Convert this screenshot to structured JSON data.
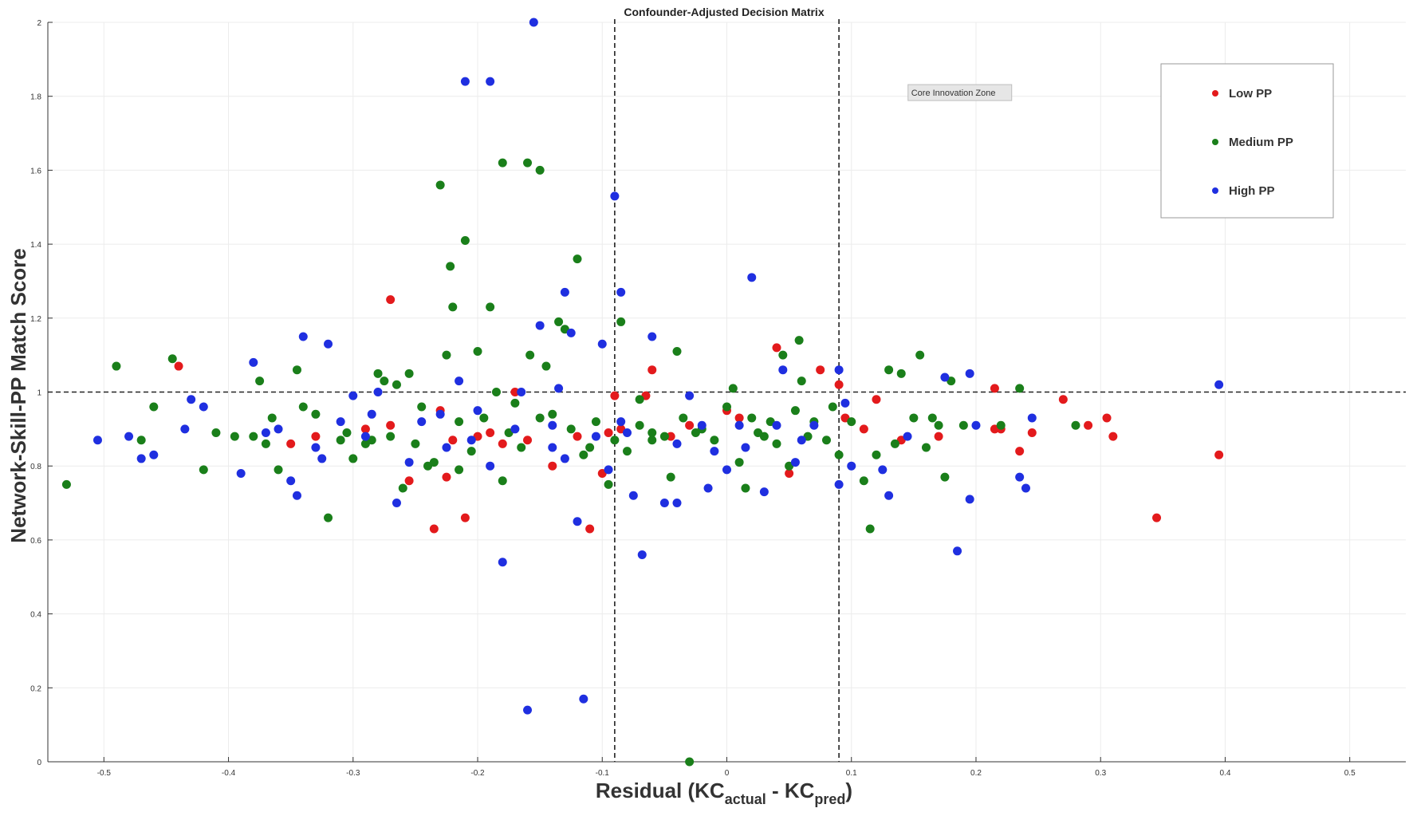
{
  "chart_data": {
    "type": "scatter",
    "title": "Confounder-Adjusted Decision Matrix",
    "xlabel": {
      "prefix": "Residual (KC",
      "sub1": "actual",
      "mid": " - KC",
      "sub2": "pred",
      "suffix": ")"
    },
    "ylabel": "Network-Skill-PP Match Score",
    "xlim": [
      -0.545,
      0.545
    ],
    "ylim": [
      0,
      2
    ],
    "xticks": [
      -0.5,
      -0.4,
      -0.3,
      -0.2,
      -0.1,
      0,
      0.1,
      0.2,
      0.3,
      0.4,
      0.5
    ],
    "xtick_labels": [
      "-0.5",
      "-0.4",
      "-0.3",
      "-0.2",
      "-0.1",
      "0",
      "0.1",
      "0.2",
      "0.3",
      "0.4",
      "0.5"
    ],
    "yticks": [
      0,
      0.2,
      0.4,
      0.6,
      0.8,
      1,
      1.2,
      1.4,
      1.6,
      1.8,
      2
    ],
    "ytick_labels": [
      "0",
      "0.2",
      "0.4",
      "0.6",
      "0.8",
      "1",
      "1.2",
      "1.4",
      "1.6",
      "1.8",
      "2"
    ],
    "grid": true,
    "legend_position": "top-right",
    "reference_lines": {
      "horizontal_y": 1,
      "vertical_x": [
        -0.09,
        0.09
      ]
    },
    "annotation": {
      "text": "Core Innovation Zone",
      "x": 0.148,
      "y": 1.81
    },
    "colors": {
      "Low PP": "#e31a1c",
      "Medium PP": "#1a7f1a",
      "High PP": "#1f2fe0"
    },
    "series": [
      {
        "name": "Low PP",
        "points": [
          [
            -0.44,
            1.07
          ],
          [
            -0.27,
            1.25
          ],
          [
            -0.235,
            0.63
          ],
          [
            -0.21,
            0.66
          ],
          [
            -0.17,
            1.0
          ],
          [
            -0.14,
            0.8
          ],
          [
            -0.11,
            0.63
          ],
          [
            -0.1,
            0.78
          ],
          [
            -0.09,
            0.99
          ],
          [
            -0.06,
            1.06
          ],
          [
            -0.35,
            0.86
          ],
          [
            -0.29,
            0.9
          ],
          [
            -0.27,
            0.91
          ],
          [
            -0.255,
            0.76
          ],
          [
            -0.225,
            0.77
          ],
          [
            -0.2,
            0.88
          ],
          [
            -0.18,
            0.86
          ],
          [
            -0.16,
            0.87
          ],
          [
            -0.12,
            0.88
          ],
          [
            -0.085,
            0.9
          ],
          [
            -0.045,
            0.88
          ],
          [
            -0.03,
            0.91
          ],
          [
            0.0,
            0.95
          ],
          [
            0.04,
            1.12
          ],
          [
            0.05,
            0.78
          ],
          [
            0.075,
            1.06
          ],
          [
            0.09,
            1.02
          ],
          [
            0.095,
            0.93
          ],
          [
            0.12,
            0.98
          ],
          [
            0.14,
            0.87
          ],
          [
            0.17,
            0.88
          ],
          [
            0.215,
            1.01
          ],
          [
            0.22,
            0.9
          ],
          [
            0.235,
            0.84
          ],
          [
            0.245,
            0.89
          ],
          [
            0.27,
            0.98
          ],
          [
            0.29,
            0.91
          ],
          [
            0.305,
            0.93
          ],
          [
            0.31,
            0.88
          ],
          [
            0.345,
            0.66
          ],
          [
            0.395,
            0.83
          ],
          [
            -0.33,
            0.88
          ],
          [
            -0.23,
            0.95
          ],
          [
            -0.19,
            0.89
          ],
          [
            0.01,
            0.93
          ],
          [
            0.11,
            0.9
          ],
          [
            0.215,
            0.9
          ],
          [
            -0.065,
            0.99
          ],
          [
            -0.095,
            0.89
          ],
          [
            -0.22,
            0.87
          ]
        ]
      },
      {
        "name": "Medium PP",
        "points": [
          [
            -0.53,
            0.75
          ],
          [
            -0.49,
            1.07
          ],
          [
            -0.47,
            0.87
          ],
          [
            -0.46,
            0.96
          ],
          [
            -0.445,
            1.09
          ],
          [
            -0.42,
            0.79
          ],
          [
            -0.41,
            0.89
          ],
          [
            -0.38,
            0.88
          ],
          [
            -0.375,
            1.03
          ],
          [
            -0.37,
            0.86
          ],
          [
            -0.365,
            0.93
          ],
          [
            -0.36,
            0.79
          ],
          [
            -0.345,
            1.06
          ],
          [
            -0.34,
            0.96
          ],
          [
            -0.32,
            0.66
          ],
          [
            -0.31,
            0.87
          ],
          [
            -0.3,
            0.82
          ],
          [
            -0.29,
            0.86
          ],
          [
            -0.28,
            1.05
          ],
          [
            -0.275,
            1.03
          ],
          [
            -0.265,
            1.02
          ],
          [
            -0.255,
            1.05
          ],
          [
            -0.25,
            0.86
          ],
          [
            -0.245,
            0.96
          ],
          [
            -0.24,
            0.8
          ],
          [
            -0.23,
            1.56
          ],
          [
            -0.225,
            1.1
          ],
          [
            -0.222,
            1.34
          ],
          [
            -0.22,
            1.23
          ],
          [
            -0.215,
            0.92
          ],
          [
            -0.21,
            1.41
          ],
          [
            -0.205,
            0.84
          ],
          [
            -0.2,
            1.11
          ],
          [
            -0.195,
            0.93
          ],
          [
            -0.19,
            1.23
          ],
          [
            -0.185,
            1.0
          ],
          [
            -0.18,
            1.62
          ],
          [
            -0.175,
            0.89
          ],
          [
            -0.165,
            0.85
          ],
          [
            -0.16,
            1.62
          ],
          [
            -0.158,
            1.1
          ],
          [
            -0.15,
            1.6
          ],
          [
            -0.145,
            1.07
          ],
          [
            -0.14,
            0.94
          ],
          [
            -0.135,
            1.19
          ],
          [
            -0.13,
            1.17
          ],
          [
            -0.12,
            1.36
          ],
          [
            -0.11,
            0.85
          ],
          [
            -0.105,
            0.92
          ],
          [
            -0.095,
            0.75
          ],
          [
            -0.085,
            1.19
          ],
          [
            -0.08,
            0.84
          ],
          [
            -0.07,
            0.98
          ],
          [
            -0.06,
            0.87
          ],
          [
            -0.05,
            0.88
          ],
          [
            -0.04,
            1.11
          ],
          [
            -0.035,
            0.93
          ],
          [
            -0.03,
            0.0
          ],
          [
            -0.02,
            0.9
          ],
          [
            -0.01,
            0.87
          ],
          [
            0.0,
            0.96
          ],
          [
            0.005,
            1.01
          ],
          [
            0.01,
            0.81
          ],
          [
            0.02,
            0.93
          ],
          [
            0.03,
            0.88
          ],
          [
            0.04,
            0.86
          ],
          [
            0.045,
            1.1
          ],
          [
            0.055,
            0.95
          ],
          [
            0.058,
            1.14
          ],
          [
            0.06,
            1.03
          ],
          [
            0.065,
            0.88
          ],
          [
            0.07,
            0.92
          ],
          [
            0.08,
            0.87
          ],
          [
            0.09,
            0.83
          ],
          [
            0.1,
            0.92
          ],
          [
            0.11,
            0.76
          ],
          [
            0.115,
            0.63
          ],
          [
            0.12,
            0.83
          ],
          [
            0.13,
            1.06
          ],
          [
            0.135,
            0.86
          ],
          [
            0.14,
            1.05
          ],
          [
            0.15,
            0.93
          ],
          [
            0.155,
            1.1
          ],
          [
            0.16,
            0.85
          ],
          [
            0.165,
            0.93
          ],
          [
            0.17,
            0.91
          ],
          [
            0.175,
            0.77
          ],
          [
            0.18,
            1.03
          ],
          [
            0.19,
            0.91
          ],
          [
            0.22,
            0.91
          ],
          [
            0.235,
            1.01
          ],
          [
            0.28,
            0.91
          ],
          [
            -0.395,
            0.88
          ],
          [
            -0.305,
            0.89
          ],
          [
            -0.285,
            0.87
          ],
          [
            -0.26,
            0.74
          ],
          [
            -0.235,
            0.81
          ],
          [
            -0.215,
            0.79
          ],
          [
            -0.18,
            0.76
          ],
          [
            -0.17,
            0.97
          ],
          [
            -0.125,
            0.9
          ],
          [
            -0.115,
            0.83
          ],
          [
            -0.09,
            0.87
          ],
          [
            -0.07,
            0.91
          ],
          [
            -0.045,
            0.77
          ],
          [
            -0.025,
            0.89
          ],
          [
            0.015,
            0.74
          ],
          [
            0.025,
            0.89
          ],
          [
            0.05,
            0.8
          ],
          [
            0.085,
            0.96
          ],
          [
            -0.33,
            0.94
          ],
          [
            -0.27,
            0.88
          ],
          [
            -0.15,
            0.93
          ],
          [
            -0.06,
            0.89
          ],
          [
            0.035,
            0.92
          ]
        ]
      },
      {
        "name": "High PP",
        "points": [
          [
            -0.505,
            0.87
          ],
          [
            -0.48,
            0.88
          ],
          [
            -0.47,
            0.82
          ],
          [
            -0.46,
            0.83
          ],
          [
            -0.435,
            0.9
          ],
          [
            -0.43,
            0.98
          ],
          [
            -0.42,
            0.96
          ],
          [
            -0.39,
            0.78
          ],
          [
            -0.38,
            1.08
          ],
          [
            -0.35,
            0.76
          ],
          [
            -0.345,
            0.72
          ],
          [
            -0.34,
            1.15
          ],
          [
            -0.33,
            0.85
          ],
          [
            -0.325,
            0.82
          ],
          [
            -0.32,
            1.13
          ],
          [
            -0.31,
            0.92
          ],
          [
            -0.3,
            0.99
          ],
          [
            -0.285,
            0.94
          ],
          [
            -0.28,
            1.0
          ],
          [
            -0.265,
            0.7
          ],
          [
            -0.255,
            0.81
          ],
          [
            -0.245,
            0.92
          ],
          [
            -0.23,
            0.94
          ],
          [
            -0.215,
            1.03
          ],
          [
            -0.21,
            1.84
          ],
          [
            -0.205,
            0.87
          ],
          [
            -0.2,
            0.95
          ],
          [
            -0.19,
            1.84
          ],
          [
            -0.18,
            0.54
          ],
          [
            -0.165,
            1.0
          ],
          [
            -0.16,
            0.14
          ],
          [
            -0.155,
            2.0
          ],
          [
            -0.15,
            1.18
          ],
          [
            -0.14,
            0.91
          ],
          [
            -0.135,
            1.01
          ],
          [
            -0.13,
            1.27
          ],
          [
            -0.125,
            1.16
          ],
          [
            -0.12,
            0.65
          ],
          [
            -0.115,
            0.17
          ],
          [
            -0.1,
            1.13
          ],
          [
            -0.095,
            0.79
          ],
          [
            -0.09,
            1.53
          ],
          [
            -0.085,
            1.27
          ],
          [
            -0.075,
            0.72
          ],
          [
            -0.068,
            0.56
          ],
          [
            -0.06,
            1.15
          ],
          [
            -0.05,
            0.7
          ],
          [
            -0.04,
            0.7
          ],
          [
            -0.03,
            0.99
          ],
          [
            -0.02,
            0.91
          ],
          [
            -0.01,
            0.84
          ],
          [
            0.0,
            0.79
          ],
          [
            0.01,
            0.91
          ],
          [
            0.02,
            1.31
          ],
          [
            0.03,
            0.73
          ],
          [
            0.04,
            0.91
          ],
          [
            0.045,
            1.06
          ],
          [
            0.06,
            0.87
          ],
          [
            0.07,
            0.91
          ],
          [
            0.09,
            1.06
          ],
          [
            0.095,
            0.97
          ],
          [
            0.1,
            0.8
          ],
          [
            0.125,
            0.79
          ],
          [
            0.13,
            0.72
          ],
          [
            0.145,
            0.88
          ],
          [
            0.175,
            1.04
          ],
          [
            0.185,
            0.57
          ],
          [
            0.195,
            1.05
          ],
          [
            0.195,
            0.71
          ],
          [
            0.2,
            0.91
          ],
          [
            0.235,
            0.77
          ],
          [
            0.24,
            0.74
          ],
          [
            0.245,
            0.93
          ],
          [
            0.395,
            1.02
          ],
          [
            -0.37,
            0.89
          ],
          [
            -0.29,
            0.88
          ],
          [
            -0.17,
            0.9
          ],
          [
            -0.14,
            0.85
          ],
          [
            -0.105,
            0.88
          ],
          [
            -0.08,
            0.89
          ],
          [
            -0.04,
            0.86
          ],
          [
            -0.015,
            0.74
          ],
          [
            0.015,
            0.85
          ],
          [
            0.055,
            0.81
          ],
          [
            -0.225,
            0.85
          ],
          [
            -0.13,
            0.82
          ],
          [
            -0.085,
            0.92
          ],
          [
            0.09,
            0.75
          ],
          [
            -0.36,
            0.9
          ],
          [
            -0.19,
            0.8
          ]
        ]
      }
    ]
  }
}
